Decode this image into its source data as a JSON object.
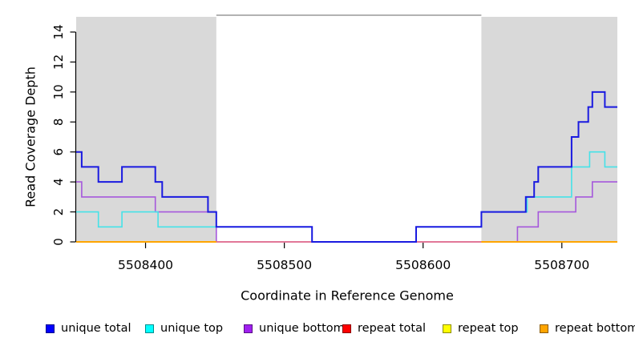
{
  "figure": {
    "xlabel": "Coordinate in Reference Genome",
    "ylabel": "Read Coverage Depth"
  },
  "chart_data": {
    "type": "line",
    "subtype": "step",
    "title": "",
    "xlabel": "Coordinate in Reference Genome",
    "ylabel": "Read Coverage Depth",
    "xlim": [
      5508350,
      5508740
    ],
    "ylim": [
      0,
      15
    ],
    "x_ticks": [
      5508400,
      5508500,
      5508600,
      5508700
    ],
    "x_tick_labels": [
      "5508400",
      "5508500",
      "5508600",
      "5508700"
    ],
    "y_ticks": [
      0,
      2,
      4,
      6,
      8,
      10,
      12,
      14
    ],
    "grid": false,
    "legend_position": "bottom",
    "background_color": "#ffffff",
    "shaded_region_color": "#d9d9d9",
    "shaded_regions_x": [
      [
        5508350,
        5508451
      ],
      [
        5508642,
        5508740
      ]
    ],
    "unique_region_top_line_x": [
      5508451,
      5508642
    ],
    "unique_region_top_line_color": "#999999",
    "series": [
      {
        "name": "unique bottom",
        "color": "#a558dc",
        "width": 1.6,
        "segments": [
          {
            "steps": [
              [
                5508350,
                4
              ],
              [
                5508354,
                3
              ],
              [
                5508407,
                2
              ],
              [
                5508451,
                0
              ],
              [
                5508668,
                1
              ],
              [
                5508683,
                2
              ],
              [
                5508710,
                3
              ],
              [
                5508722,
                4
              ]
            ],
            "end": 5508740
          }
        ]
      },
      {
        "name": "repeat total",
        "color": "#e8687c",
        "width": 1.6,
        "segments": [
          {
            "steps": [
              [
                5508350,
                0
              ]
            ],
            "end": 5508740
          }
        ]
      },
      {
        "name": "repeat top",
        "color": "#ffff00",
        "width": 1.6,
        "segments": [
          {
            "steps": [
              [
                5508350,
                0
              ]
            ],
            "end": 5508451
          },
          {
            "steps": [
              [
                5508642,
                0
              ]
            ],
            "end": 5508740
          }
        ]
      },
      {
        "name": "repeat bottom",
        "color": "#ffa500",
        "width": 2,
        "segments": [
          {
            "steps": [
              [
                5508350,
                0
              ]
            ],
            "end": 5508451
          },
          {
            "steps": [
              [
                5508642,
                0
              ]
            ],
            "end": 5508740
          }
        ]
      },
      {
        "name": "unique top",
        "color": "#45e2e8",
        "width": 1.6,
        "segments": [
          {
            "steps": [
              [
                5508350,
                2
              ],
              [
                5508366,
                1
              ],
              [
                5508383,
                2
              ],
              [
                5508409,
                1
              ],
              [
                5508520,
                0
              ],
              [
                5508595,
                1
              ],
              [
                5508642,
                2
              ],
              [
                5508675,
                3
              ],
              [
                5508707,
                5
              ],
              [
                5508720,
                6
              ],
              [
                5508731,
                5
              ]
            ],
            "end": 5508740
          }
        ]
      },
      {
        "name": "unique total",
        "color": "#1a1ae0",
        "width": 2,
        "segments": [
          {
            "steps": [
              [
                5508350,
                6
              ],
              [
                5508354,
                5
              ],
              [
                5508366,
                4
              ],
              [
                5508383,
                5
              ],
              [
                5508407,
                4
              ],
              [
                5508412,
                3
              ],
              [
                5508445,
                2
              ],
              [
                5508451,
                1
              ],
              [
                5508520,
                0
              ],
              [
                5508595,
                1
              ],
              [
                5508642,
                2
              ],
              [
                5508674,
                3
              ],
              [
                5508680,
                4
              ],
              [
                5508683,
                5
              ],
              [
                5508707,
                7
              ],
              [
                5508712,
                8
              ],
              [
                5508719,
                9
              ],
              [
                5508722,
                10
              ],
              [
                5508731,
                9
              ]
            ],
            "end": 5508740
          }
        ]
      }
    ]
  },
  "legend": {
    "items": [
      {
        "label": "unique total",
        "color": "#0000ff"
      },
      {
        "label": "unique top",
        "color": "#00ffff"
      },
      {
        "label": "unique bottom",
        "color": "#a020f0"
      },
      {
        "label": "repeat total",
        "color": "#ff0000"
      },
      {
        "label": "repeat top",
        "color": "#ffff00"
      },
      {
        "label": "repeat bottom",
        "color": "#ffa500"
      }
    ]
  }
}
